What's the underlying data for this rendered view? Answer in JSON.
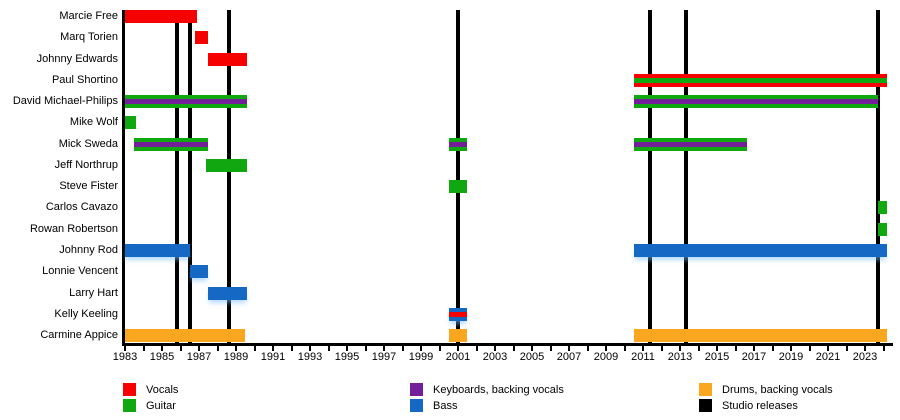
{
  "page": {
    "background": "#FFFFFF"
  },
  "chart_data": {
    "type": "bar",
    "subtype": "band-membership-gantt-timeline",
    "title": "",
    "grid": false,
    "legend_position": "bottom",
    "colors": {
      "vocals": "#F70000",
      "guitar": "#11A711",
      "keyboards": "#731F99",
      "bass": "#1568C4",
      "drums": "#FAA61E",
      "releases": "#000000"
    },
    "x_axis": {
      "start_year": 1983,
      "end_year": 2024.4,
      "tick_interval_years": 1,
      "label_interval_years": 2,
      "tick_labels": [
        "1983",
        "1985",
        "1987",
        "1989",
        "1991",
        "1993",
        "1995",
        "1997",
        "1999",
        "2001",
        "2003",
        "2005",
        "2007",
        "2009",
        "2011",
        "2013",
        "2015",
        "2017",
        "2019",
        "2021",
        "2023"
      ]
    },
    "releases": {
      "label": "Studio releases",
      "years": [
        1985.8,
        1986.5,
        1988.6,
        2001.0,
        2011.4,
        2013.3,
        2023.7
      ]
    },
    "members": [
      {
        "name": "Marcie Free",
        "bars": [
          {
            "start": 1983.0,
            "end": 1986.9,
            "role": "vocals"
          }
        ]
      },
      {
        "name": "Marq Torien",
        "bars": [
          {
            "start": 1986.8,
            "end": 1987.5,
            "role": "vocals"
          }
        ]
      },
      {
        "name": "Johnny Edwards",
        "bars": [
          {
            "start": 1987.5,
            "end": 1989.6,
            "role": "vocals"
          }
        ]
      },
      {
        "name": "Paul Shortino",
        "bars": [
          {
            "start": 2010.5,
            "end": 2024.2,
            "role": "vocals",
            "stripe_role": "guitar"
          }
        ]
      },
      {
        "name": "David Michael-Philips",
        "bars": [
          {
            "start": 1983.0,
            "end": 1989.6,
            "role": "guitar",
            "stripe_role": "keyboards"
          },
          {
            "start": 2010.5,
            "end": 2023.7,
            "role": "guitar",
            "stripe_role": "keyboards"
          }
        ]
      },
      {
        "name": "Mike Wolf",
        "bars": [
          {
            "start": 1983.0,
            "end": 1983.6,
            "role": "guitar"
          }
        ]
      },
      {
        "name": "Mick Sweda",
        "bars": [
          {
            "start": 1983.5,
            "end": 1987.5,
            "role": "guitar",
            "stripe_role": "keyboards"
          },
          {
            "start": 2000.5,
            "end": 2001.5,
            "role": "guitar",
            "stripe_role": "keyboards"
          },
          {
            "start": 2010.5,
            "end": 2016.6,
            "role": "guitar",
            "stripe_role": "keyboards"
          }
        ]
      },
      {
        "name": "Jeff Northrup",
        "bars": [
          {
            "start": 1987.4,
            "end": 1989.6,
            "role": "guitar"
          }
        ]
      },
      {
        "name": "Steve Fister",
        "bars": [
          {
            "start": 2000.5,
            "end": 2001.5,
            "role": "guitar"
          }
        ]
      },
      {
        "name": "Carlos Cavazo",
        "bars": [
          {
            "start": 2023.7,
            "end": 2024.2,
            "role": "guitar"
          }
        ]
      },
      {
        "name": "Rowan Robertson",
        "bars": [
          {
            "start": 2023.7,
            "end": 2024.2,
            "role": "guitar"
          }
        ]
      },
      {
        "name": "Johnny Rod",
        "bars": [
          {
            "start": 1983.0,
            "end": 1986.5,
            "role": "bass"
          },
          {
            "start": 2010.5,
            "end": 2024.2,
            "role": "bass"
          }
        ]
      },
      {
        "name": "Lonnie Vencent",
        "bars": [
          {
            "start": 1986.5,
            "end": 1987.5,
            "role": "bass"
          }
        ]
      },
      {
        "name": "Larry Hart",
        "bars": [
          {
            "start": 1987.5,
            "end": 1989.6,
            "role": "bass"
          }
        ]
      },
      {
        "name": "Kelly Keeling",
        "bars": [
          {
            "start": 2000.5,
            "end": 2001.5,
            "role": "bass",
            "stripe_role": "vocals"
          }
        ]
      },
      {
        "name": "Carmine Appice",
        "bars": [
          {
            "start": 1983.0,
            "end": 1989.5,
            "role": "drums"
          },
          {
            "start": 2000.5,
            "end": 2001.5,
            "role": "drums"
          },
          {
            "start": 2010.5,
            "end": 2024.2,
            "role": "drums"
          }
        ]
      }
    ],
    "legend": [
      {
        "label": "Vocals",
        "role": "vocals",
        "col": 0,
        "row": 0
      },
      {
        "label": "Guitar",
        "role": "guitar",
        "col": 0,
        "row": 1
      },
      {
        "label": "Keyboards, backing vocals",
        "role": "keyboards",
        "col": 1,
        "row": 0
      },
      {
        "label": "Bass",
        "role": "bass",
        "col": 1,
        "row": 1
      },
      {
        "label": "Drums, backing vocals",
        "role": "drums",
        "col": 2,
        "row": 0
      },
      {
        "label": "Studio releases",
        "role": "releases",
        "col": 2,
        "row": 1
      }
    ]
  }
}
